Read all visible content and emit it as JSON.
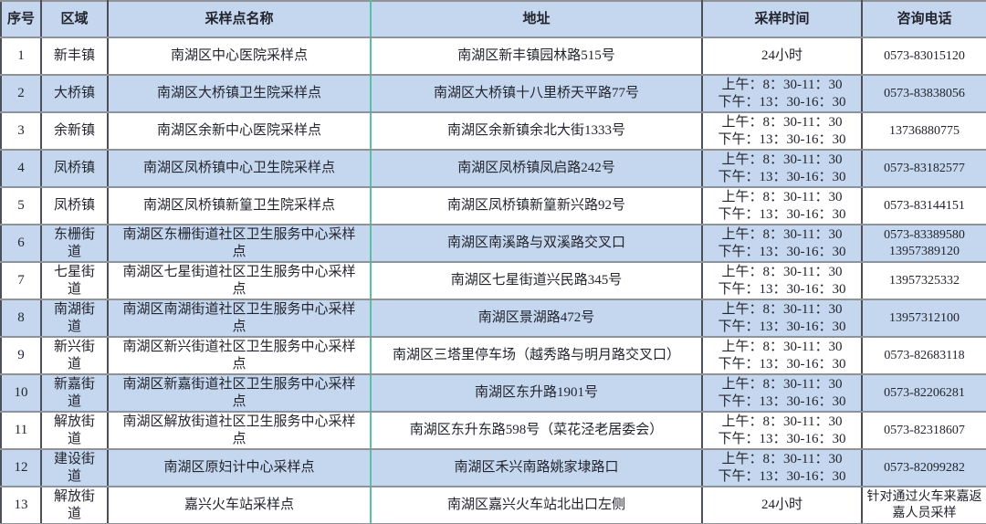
{
  "colors": {
    "row-blue": "#c4d7ee",
    "row-white": "#ffffff",
    "text": "#23242e",
    "vborder": "#4b5058",
    "hborder": "#8e939b",
    "gborder": "#58c1a5"
  },
  "table": {
    "headers": [
      "序号",
      "区域",
      "采样点名称",
      "地址",
      "采样时间",
      "咨询电话"
    ],
    "rows": [
      {
        "no": "1",
        "area": "新丰镇",
        "name": "南湖区中心医院采样点",
        "address": "南湖区新丰镇园林路515号",
        "time": [
          "24小时"
        ],
        "phone": [
          "0573-83015120"
        ]
      },
      {
        "no": "2",
        "area": "大桥镇",
        "name": "南湖区大桥镇卫生院采样点",
        "address": "南湖区大桥镇十八里桥天平路77号",
        "time": [
          "上午：8：30-11：30",
          "下午：13：30-16：30"
        ],
        "phone": [
          "0573-83838056"
        ]
      },
      {
        "no": "3",
        "area": "余新镇",
        "name": "南湖区余新中心医院采样点",
        "address": "南湖区余新镇余北大街1333号",
        "time": [
          "上午：8：30-11：30",
          "下午：13：30-16：30"
        ],
        "phone": [
          "13736880775"
        ]
      },
      {
        "no": "4",
        "area": "凤桥镇",
        "name": "南湖区凤桥镇中心卫生院采样点",
        "address": "南湖区凤桥镇凤启路242号",
        "time": [
          "上午：8：30-11：30",
          "下午：13：30-16：30"
        ],
        "phone": [
          "0573-83182577"
        ]
      },
      {
        "no": "5",
        "area": "凤桥镇",
        "name": "南湖区凤桥镇新篁卫生院采样点",
        "address": "南湖区凤桥镇新篁新兴路92号",
        "time": [
          "上午：8：30-11：30",
          "下午：13：30-16：30"
        ],
        "phone": [
          "0573-83144151"
        ]
      },
      {
        "no": "6",
        "area": "东栅街道",
        "name": "南湖区东栅街道社区卫生服务中心采样点",
        "address": "南湖区南溪路与双溪路交叉口",
        "time": [
          "上午：8：30-11：30",
          "下午：13：30-16：30"
        ],
        "phone": [
          "0573-83389580",
          "13957389120"
        ]
      },
      {
        "no": "7",
        "area": "七星街道",
        "name": "南湖区七星街道社区卫生服务中心采样点",
        "address": "南湖区七星街道兴民路345号",
        "time": [
          "上午：8：30-11：30",
          "下午：13：30-16：30"
        ],
        "phone": [
          "13957325332"
        ]
      },
      {
        "no": "8",
        "area": "南湖街道",
        "name": "南湖区南湖街道社区卫生服务中心采样点",
        "address": "南湖区景湖路472号",
        "time": [
          "上午：8：30-11：30",
          "下午：13：30-16：30"
        ],
        "phone": [
          "13957312100"
        ]
      },
      {
        "no": "9",
        "area": "新兴街道",
        "name": "南湖区新兴街道社区卫生服务中心采样点",
        "address": "南湖区三塔里停车场（越秀路与明月路交叉口）",
        "time": [
          "上午：8：30-11：30",
          "下午：13：30-16：30"
        ],
        "phone": [
          "0573-82683118"
        ]
      },
      {
        "no": "10",
        "area": "新嘉街道",
        "name": "南湖区新嘉街道社区卫生服务中心采样点",
        "address": "南湖区东升路1901号",
        "time": [
          "上午：8：30-11：30",
          "下午：13：30-16：30"
        ],
        "phone": [
          "0573-82206281"
        ]
      },
      {
        "no": "11",
        "area": "解放街道",
        "name": "南湖区解放街道社区卫生服务中心采样点",
        "address": "南湖区东升东路598号（菜花泾老居委会）",
        "time": [
          "上午：8：30-11：30",
          "下午：13：30-16：30"
        ],
        "phone": [
          "0573-82318607"
        ]
      },
      {
        "no": "12",
        "area": "建设街道",
        "name": "南湖区原妇计中心采样点",
        "address": "南湖区禾兴南路姚家埭路口",
        "time": [
          "上午：8：30-11：30",
          "下午：13：30-16：30"
        ],
        "phone": [
          "0573-82099282"
        ]
      },
      {
        "no": "13",
        "area": "解放街道",
        "name": "嘉兴火车站采样点",
        "address": "南湖区嘉兴火车站北出口左侧",
        "time": [
          "24小时"
        ],
        "phone": [
          "针对通过火车来嘉返嘉人员采样"
        ]
      }
    ]
  }
}
